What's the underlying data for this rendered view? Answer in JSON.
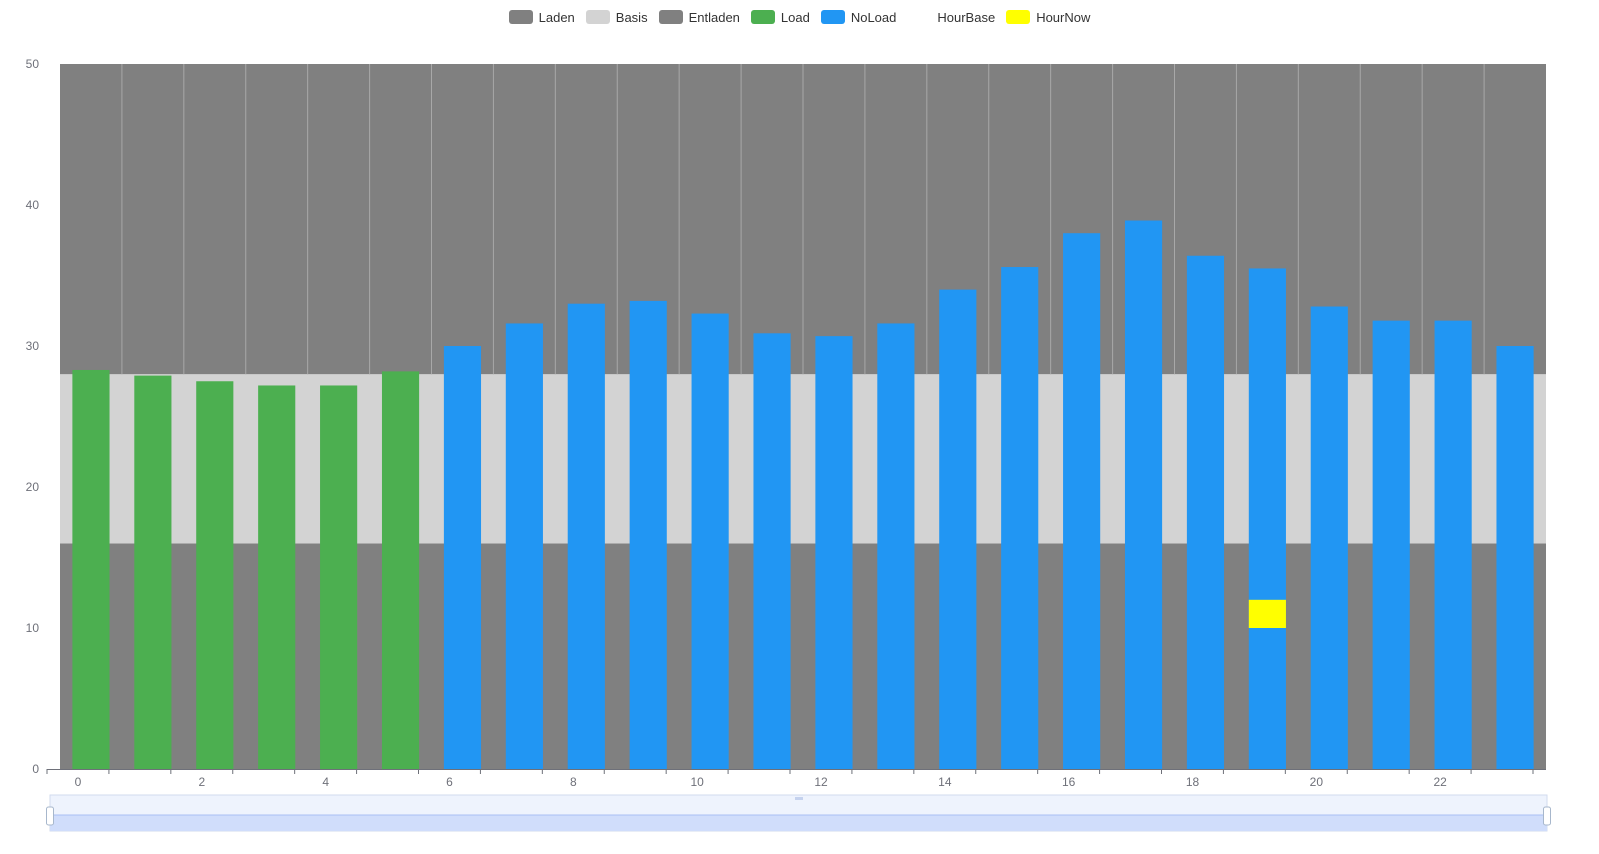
{
  "chart_data": {
    "type": "bar",
    "categories": [
      0,
      1,
      2,
      3,
      4,
      5,
      6,
      7,
      8,
      9,
      10,
      11,
      12,
      13,
      14,
      15,
      16,
      17,
      18,
      19,
      20,
      21,
      22,
      23
    ],
    "x_tick_labels": [
      "0",
      "2",
      "4",
      "6",
      "8",
      "10",
      "12",
      "14",
      "16",
      "18",
      "20",
      "22"
    ],
    "y_tick_labels": [
      "0",
      "10",
      "20",
      "30",
      "40",
      "50"
    ],
    "ylim": [
      0,
      50
    ],
    "legend": [
      {
        "name": "Laden",
        "color": "#808080"
      },
      {
        "name": "Basis",
        "color": "#d3d3d3"
      },
      {
        "name": "Entladen",
        "color": "#808080"
      },
      {
        "name": "Load",
        "color": "#4caf50"
      },
      {
        "name": "NoLoad",
        "color": "#2196f3"
      },
      {
        "name": "HourBase",
        "color": "#ffffff"
      },
      {
        "name": "HourNow",
        "color": "#ffff00"
      }
    ],
    "background_bands": [
      {
        "name": "Entladen",
        "from": 0,
        "to": 16,
        "color": "#808080"
      },
      {
        "name": "Basis",
        "from": 16,
        "to": 28,
        "color": "#d3d3d3"
      },
      {
        "name": "Laden",
        "from": 28,
        "to": 50,
        "color": "#808080"
      }
    ],
    "series": [
      {
        "name": "Load",
        "color": "#4caf50",
        "values": [
          28.3,
          27.9,
          27.5,
          27.2,
          27.2,
          28.2,
          null,
          null,
          null,
          null,
          null,
          null,
          null,
          null,
          null,
          null,
          null,
          null,
          null,
          null,
          null,
          null,
          null,
          null
        ]
      },
      {
        "name": "NoLoad",
        "color": "#2196f3",
        "values": [
          null,
          null,
          null,
          null,
          null,
          null,
          30.0,
          31.6,
          33.0,
          33.2,
          32.3,
          30.9,
          30.7,
          31.6,
          34.0,
          35.6,
          38.0,
          38.9,
          36.4,
          35.5,
          32.8,
          31.8,
          31.8,
          30.0
        ]
      }
    ],
    "hour_now": {
      "hour": 19,
      "base": 10,
      "value": 12,
      "color": "#ffff00"
    }
  },
  "datazoom": {
    "start_percent": 0,
    "end_percent": 100
  }
}
